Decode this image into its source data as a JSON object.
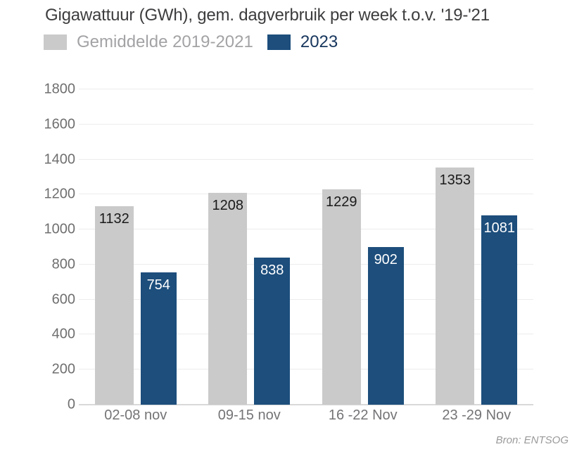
{
  "title": "Gigawattuur (GWh), gem. dagverbruik per week t.o.v. '19-'21",
  "source": "Bron: ENTSOG",
  "colors": {
    "background": "#ffffff",
    "title_text": "#3d3d3f",
    "axis_text": "#6f6f6f",
    "gridline": "#ececec",
    "baseline": "#d9d9d9",
    "source_text": "#9a9a9a"
  },
  "chart_data": {
    "type": "bar",
    "title": "Gigawattuur (GWh), gem. dagverbruik per week t.o.v. '19-'21",
    "categories": [
      "02-08 nov",
      "09-15 nov",
      "16 -22 Nov",
      "23 -29 Nov"
    ],
    "series": [
      {
        "name": "Gemiddelde 2019-2021",
        "values": [
          1132,
          1208,
          1229,
          1353
        ],
        "color": "#cacaca",
        "value_label_color": "#1a1a1a",
        "legend_text_color": "#a3a3a6"
      },
      {
        "name": "2023",
        "values": [
          754,
          838,
          902,
          1081
        ],
        "color": "#1d4e7c",
        "value_label_color": "#ffffff",
        "legend_text_color": "#17365d"
      }
    ],
    "xlabel": "",
    "ylabel": "",
    "ylim": [
      0,
      1800
    ],
    "ytick_step": 200,
    "yticks": [
      0,
      200,
      400,
      600,
      800,
      1000,
      1200,
      1400,
      1600,
      1800
    ],
    "grid": true,
    "legend_position": "top-left",
    "value_labels": "inside-top",
    "source": "Bron: ENTSOG"
  }
}
